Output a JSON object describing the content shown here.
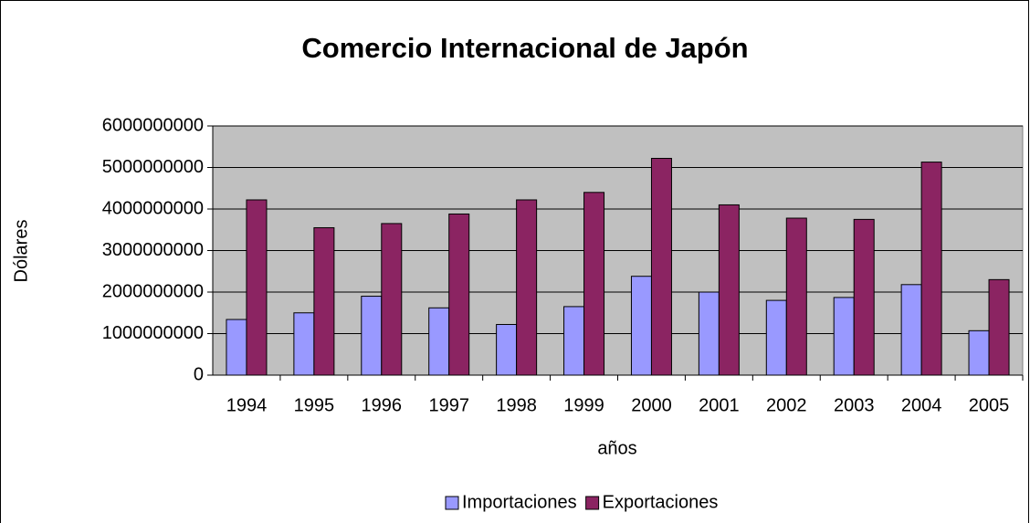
{
  "chart_data": {
    "type": "bar",
    "title": "Comercio Internacional de Japón",
    "x_label": "años",
    "y_label": "Dólares",
    "categories": [
      "1994",
      "1995",
      "1996",
      "1997",
      "1998",
      "1999",
      "2000",
      "2001",
      "2002",
      "2003",
      "2004",
      "2005"
    ],
    "series": [
      {
        "name": "Importaciones",
        "color": "#9999ff",
        "values": [
          1340000000,
          1500000000,
          1900000000,
          1620000000,
          1220000000,
          1650000000,
          2380000000,
          2000000000,
          1800000000,
          1870000000,
          2180000000,
          1070000000
        ]
      },
      {
        "name": "Exportaciones",
        "color": "#8b2462",
        "values": [
          4220000000,
          3550000000,
          3650000000,
          3880000000,
          4220000000,
          4400000000,
          5220000000,
          4100000000,
          3780000000,
          3750000000,
          5130000000,
          2300000000
        ]
      }
    ],
    "ylim": [
      0,
      6000000000
    ],
    "yticks": [
      0,
      1000000000,
      2000000000,
      3000000000,
      4000000000,
      5000000000,
      6000000000
    ],
    "grid": true,
    "legend": "bottom"
  }
}
